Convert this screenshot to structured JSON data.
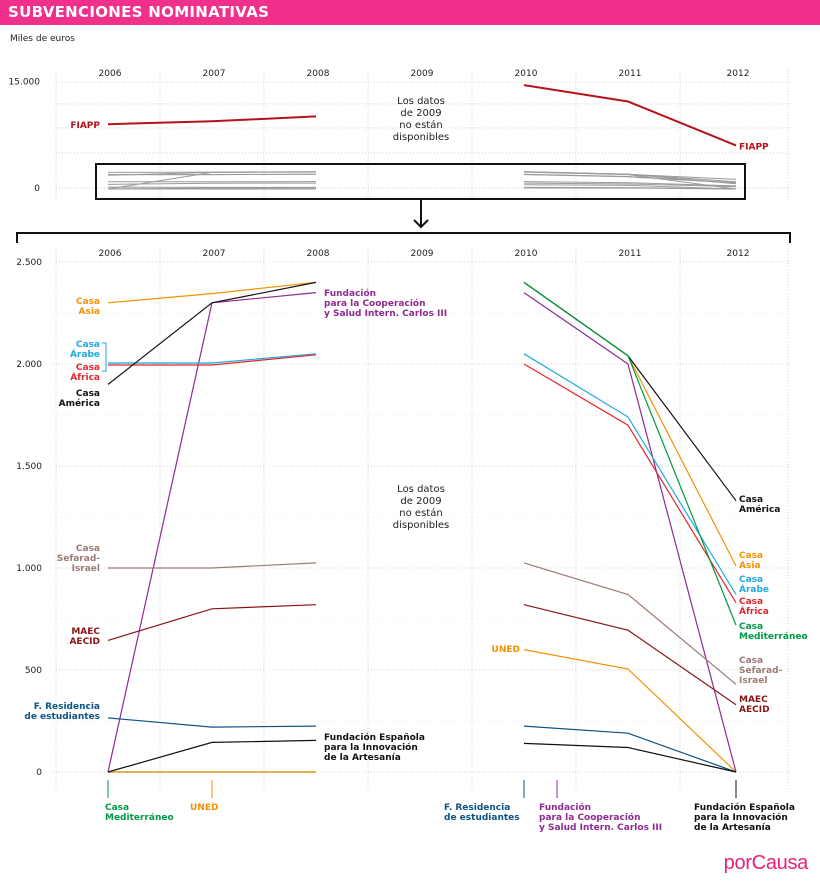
{
  "header": {
    "title": "SUBVENCIONES NOMINATIVAS"
  },
  "units_label": "Miles de euros",
  "logo": "porCausa",
  "chart_data": [
    {
      "type": "line",
      "years": [
        "2006",
        "2007",
        "2008",
        "2009",
        "2010",
        "2011",
        "2012"
      ],
      "y_ticks": [
        {
          "value": 0,
          "label": "0"
        },
        {
          "value": 15000,
          "label": "15.000"
        }
      ],
      "ylim": [
        0,
        15000
      ],
      "missing_note": [
        "Los datos",
        "de 2009",
        "no están",
        "disponibles"
      ],
      "series": [
        {
          "name": "FIAPP",
          "color": "#b5121b",
          "values": [
            9000,
            9400,
            10100,
            null,
            14500,
            12200,
            6000
          ],
          "left_label": [
            "FIAPP"
          ],
          "right_label": [
            "FIAPP"
          ]
        }
      ]
    },
    {
      "type": "line",
      "years": [
        "2006",
        "2007",
        "2008",
        "2009",
        "2010",
        "2011",
        "2012"
      ],
      "y_ticks": [
        {
          "value": 0,
          "label": "0"
        },
        {
          "value": 500,
          "label": "500"
        },
        {
          "value": 1000,
          "label": "1.000"
        },
        {
          "value": 1500,
          "label": "1.500"
        },
        {
          "value": 2000,
          "label": "2.000"
        },
        {
          "value": 2500,
          "label": "2.500"
        }
      ],
      "ylim": [
        0,
        2500
      ],
      "missing_note": [
        "Los datos",
        "de 2009",
        "no están",
        "disponibles"
      ],
      "series": [
        {
          "name": "Casa Asia",
          "color": "#f39200",
          "values": [
            2300,
            2345,
            2400,
            null,
            2400,
            2040,
            1010
          ],
          "left_label": [
            "Casa",
            "Asia"
          ],
          "right_label": [
            "Casa",
            "Asia"
          ]
        },
        {
          "name": "Fundación para la Cooperación y Salud Intern. Carlos III",
          "color": "#8e2a91",
          "values": [
            0,
            2300,
            2350,
            null,
            2350,
            2000,
            0
          ],
          "left_label": [
            "Fundación",
            "para la Cooperación",
            "y Salud Intern. Carlos III"
          ],
          "bottom_label": [
            "Fundación",
            "para la Cooperación",
            "y Salud Intern. Carlos III"
          ]
        },
        {
          "name": "Casa Árabe",
          "color": "#1ea9df",
          "values": [
            2005,
            2005,
            2050,
            null,
            2050,
            1740,
            870
          ],
          "left_label": [
            "Casa",
            "Árabe"
          ],
          "right_label": [
            "Casa",
            "Árabe"
          ]
        },
        {
          "name": "Casa África",
          "color": "#e3262d",
          "values": [
            1995,
            1995,
            2045,
            null,
            2000,
            1700,
            830
          ],
          "left_label": [
            "Casa",
            "África"
          ],
          "right_label": [
            "Casa",
            "África"
          ]
        },
        {
          "name": "Casa América",
          "color": "#111111",
          "values": [
            1900,
            2300,
            2400,
            null,
            2400,
            2040,
            1330
          ],
          "left_label": [
            "Casa",
            "América"
          ],
          "right_label": [
            "Casa",
            "América"
          ]
        },
        {
          "name": "Casa Mediterráneo",
          "color": "#009a44",
          "values": [
            0,
            0,
            0,
            null,
            2400,
            2040,
            720
          ],
          "right_label": [
            "Casa",
            "Mediterráneo"
          ],
          "bottom_label": [
            "Casa",
            "Mediterráneo"
          ]
        },
        {
          "name": "Casa Sefarad-Israel",
          "color": "#9c7b73",
          "values": [
            1000,
            1000,
            1025,
            null,
            1025,
            870,
            430
          ],
          "left_label": [
            "Casa",
            "Sefarad-",
            "Israel"
          ],
          "right_label": [
            "Casa",
            "Sefarad-",
            "Israel"
          ]
        },
        {
          "name": "MAEC AECID",
          "color": "#8a1517",
          "values": [
            645,
            800,
            820,
            null,
            820,
            695,
            330
          ],
          "left_label": [
            "MAEC",
            "AECID"
          ],
          "right_label": [
            "MAEC",
            "AECID"
          ]
        },
        {
          "name": "UNED",
          "color": "#f39200",
          "values": [
            0,
            0,
            0,
            null,
            600,
            505,
            0
          ],
          "right_label": [
            "UNED"
          ],
          "bottom_label": [
            "UNED"
          ]
        },
        {
          "name": "F. Residencia de estudiantes",
          "color": "#0e5384",
          "values": [
            265,
            220,
            225,
            null,
            225,
            190,
            0
          ],
          "left_label": [
            "F. Residencia",
            "de estudiantes"
          ],
          "bottom_label": [
            "F. Residencia",
            "de estudiantes"
          ]
        },
        {
          "name": "Fundación Española para la Innovación de la Artesanía",
          "color": "#111111",
          "values": [
            0,
            145,
            155,
            null,
            140,
            120,
            0
          ],
          "left_label": [
            "Fundación Española",
            "para la Innovación",
            "de la Artesanía"
          ],
          "bottom_label": [
            "Fundación Española",
            "para la Innovación",
            "de la Artesanía"
          ]
        }
      ]
    }
  ]
}
